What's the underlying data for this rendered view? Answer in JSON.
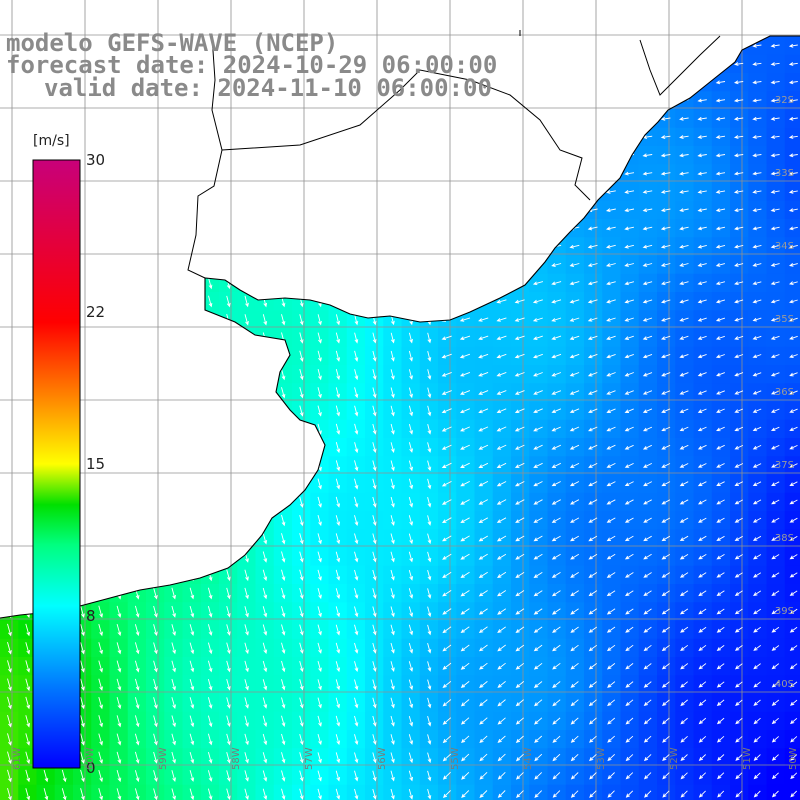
{
  "title": {
    "line1": "modelo GEFS-WAVE (NCEP)",
    "line2": "forecast date: 2024-10-29 06:00:00",
    "line3": "valid date: 2024-11-10 06:00:00"
  },
  "colorbar": {
    "unit": "[m/s]",
    "ticks": [
      "30",
      "22",
      "15",
      "8",
      "0"
    ],
    "tick_values": [
      30,
      22,
      15,
      8,
      0
    ],
    "range": [
      0,
      30
    ],
    "colors": [
      "#0000ff",
      "#00c8ff",
      "#00ffff",
      "#00ff00",
      "#ffff00",
      "#ff8000",
      "#ff0000",
      "#cc0066"
    ]
  },
  "map": {
    "lon_range": [
      -61.3,
      -50.5
    ],
    "lat_range": [
      -41.7,
      -31.2
    ],
    "land_color": "#ffffff",
    "grid_color": "#909090",
    "coast_color": "#000000",
    "arrow_color": "#ffffff",
    "lat_labels": [
      "32S",
      "33S",
      "34S",
      "35S",
      "36S",
      "37S",
      "38S",
      "39S",
      "40S"
    ],
    "lon_labels": [
      "61W",
      "60W",
      "59W",
      "58W",
      "57W",
      "56W",
      "55W",
      "54W",
      "53W",
      "52W",
      "51W",
      "50W"
    ]
  }
}
